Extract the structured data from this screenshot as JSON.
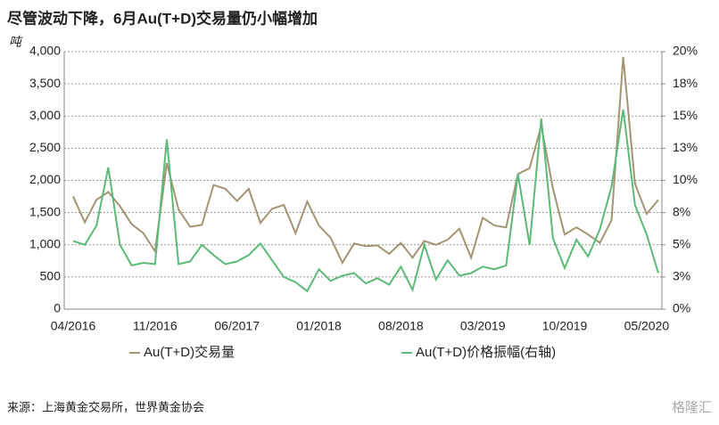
{
  "chart_data": {
    "type": "line",
    "title": "尽管波动下降，6月Au(T+D)交易量仍小幅增加",
    "y_axis_label": "吨",
    "source": "来源：上海黄金交易所，世界黄金协会",
    "brand": "格隆汇",
    "categories": [
      "04/2016",
      null,
      null,
      null,
      null,
      null,
      null,
      "11/2016",
      null,
      null,
      null,
      null,
      null,
      null,
      "06/2017",
      null,
      null,
      null,
      null,
      null,
      null,
      "01/2018",
      null,
      null,
      null,
      null,
      null,
      null,
      "08/2018",
      null,
      null,
      null,
      null,
      null,
      null,
      "03/2019",
      null,
      null,
      null,
      null,
      null,
      null,
      "10/2019",
      null,
      null,
      null,
      null,
      null,
      null,
      "05/2020",
      null
    ],
    "series": [
      {
        "name": "Au(T+D)交易量",
        "color": "#a39573",
        "axis": "y",
        "values": [
          1750,
          1350,
          1700,
          1820,
          1600,
          1320,
          1180,
          900,
          2270,
          1550,
          1280,
          1310,
          1930,
          1870,
          1680,
          1870,
          1340,
          1560,
          1620,
          1180,
          1670,
          1300,
          1110,
          720,
          1020,
          980,
          990,
          860,
          1030,
          800,
          1060,
          1000,
          1080,
          1250,
          800,
          1420,
          1300,
          1270,
          2100,
          2190,
          2850,
          1870,
          1160,
          1270,
          1160,
          1030,
          1380,
          3920,
          1950,
          1480,
          1700
        ]
      },
      {
        "name": "Au(T+D)价格振幅(右轴)",
        "color": "#5cba78",
        "axis": "y2",
        "values": [
          5.3,
          5.0,
          6.5,
          11.0,
          5.0,
          3.4,
          3.6,
          3.5,
          13.2,
          3.5,
          3.7,
          5.0,
          4.2,
          3.5,
          3.7,
          4.2,
          5.1,
          3.8,
          2.5,
          2.1,
          1.4,
          3.1,
          2.2,
          2.6,
          2.8,
          2.0,
          2.4,
          1.9,
          3.3,
          1.5,
          5.0,
          2.3,
          3.8,
          2.6,
          2.8,
          3.3,
          3.1,
          3.4,
          10.5,
          5.0,
          14.8,
          5.5,
          3.2,
          5.4,
          4.1,
          6.2,
          9.5,
          15.5,
          8.1,
          5.8,
          2.8
        ]
      }
    ],
    "ylim": [
      0,
      4000
    ],
    "yticks": [
      0,
      500,
      {
        "value": 1000,
        "label": "1,000"
      },
      {
        "value": 1500,
        "label": "1,500"
      },
      {
        "value": 2000,
        "label": "2,000"
      },
      {
        "value": 2500,
        "label": "2,500"
      },
      {
        "value": 3000,
        "label": "3,000"
      },
      {
        "value": 3500,
        "label": "3,500"
      },
      {
        "value": 4000,
        "label": "4,000"
      }
    ],
    "y2lim": [
      0,
      20
    ],
    "y2ticks": [
      {
        "value": 0,
        "label": "0%"
      },
      {
        "value": 2.5,
        "label": "3%"
      },
      {
        "value": 5,
        "label": "5%"
      },
      {
        "value": 7.5,
        "label": "8%"
      },
      {
        "value": 10,
        "label": "10%"
      },
      {
        "value": 12.5,
        "label": "13%"
      },
      {
        "value": 15,
        "label": "15%"
      },
      {
        "value": 17.5,
        "label": "18%"
      },
      {
        "value": 20,
        "label": "20%"
      }
    ],
    "grid": true
  }
}
